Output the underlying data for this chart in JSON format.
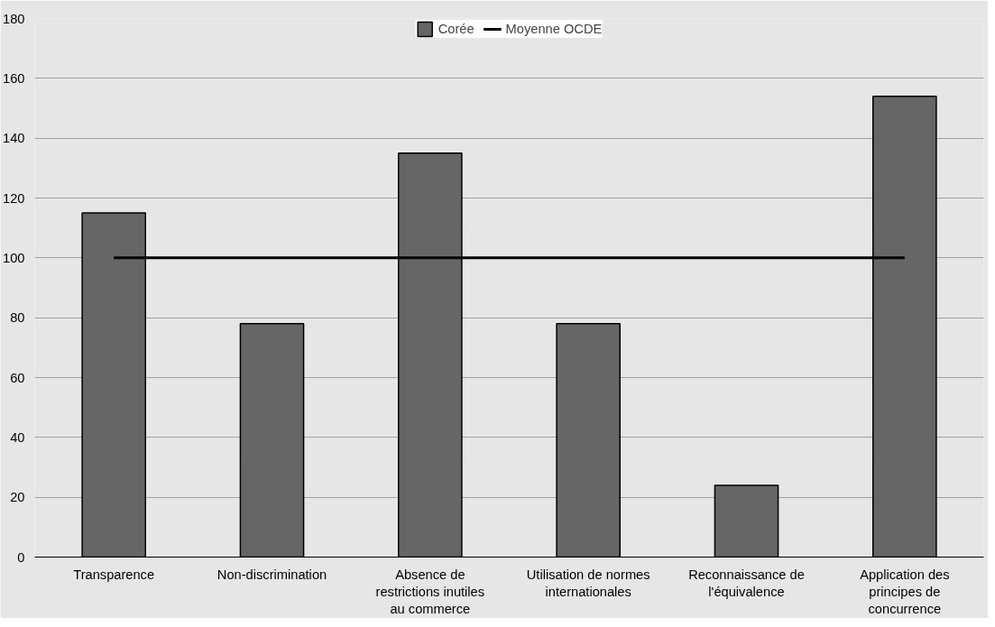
{
  "chart_data": {
    "type": "bar",
    "categories": [
      "Transparence",
      "Non-discrimination",
      "Absence de restrictions inutiles au commerce",
      "Utilisation de normes internationales",
      "Reconnaissance de l'équivalence",
      "Application des principes de concurrence"
    ],
    "series": [
      {
        "name": "Corée",
        "color": "#666666",
        "values": [
          115,
          78,
          135,
          78,
          24,
          154
        ]
      },
      {
        "name": "Moyenne OCDE",
        "type": "line",
        "color": "#000000",
        "values": [
          100,
          100,
          100,
          100,
          100,
          100
        ]
      }
    ],
    "ylim": [
      0,
      180
    ],
    "yticks": [
      0,
      20,
      40,
      60,
      80,
      100,
      120,
      140,
      160,
      180
    ],
    "grid": "y",
    "legend": "top"
  }
}
